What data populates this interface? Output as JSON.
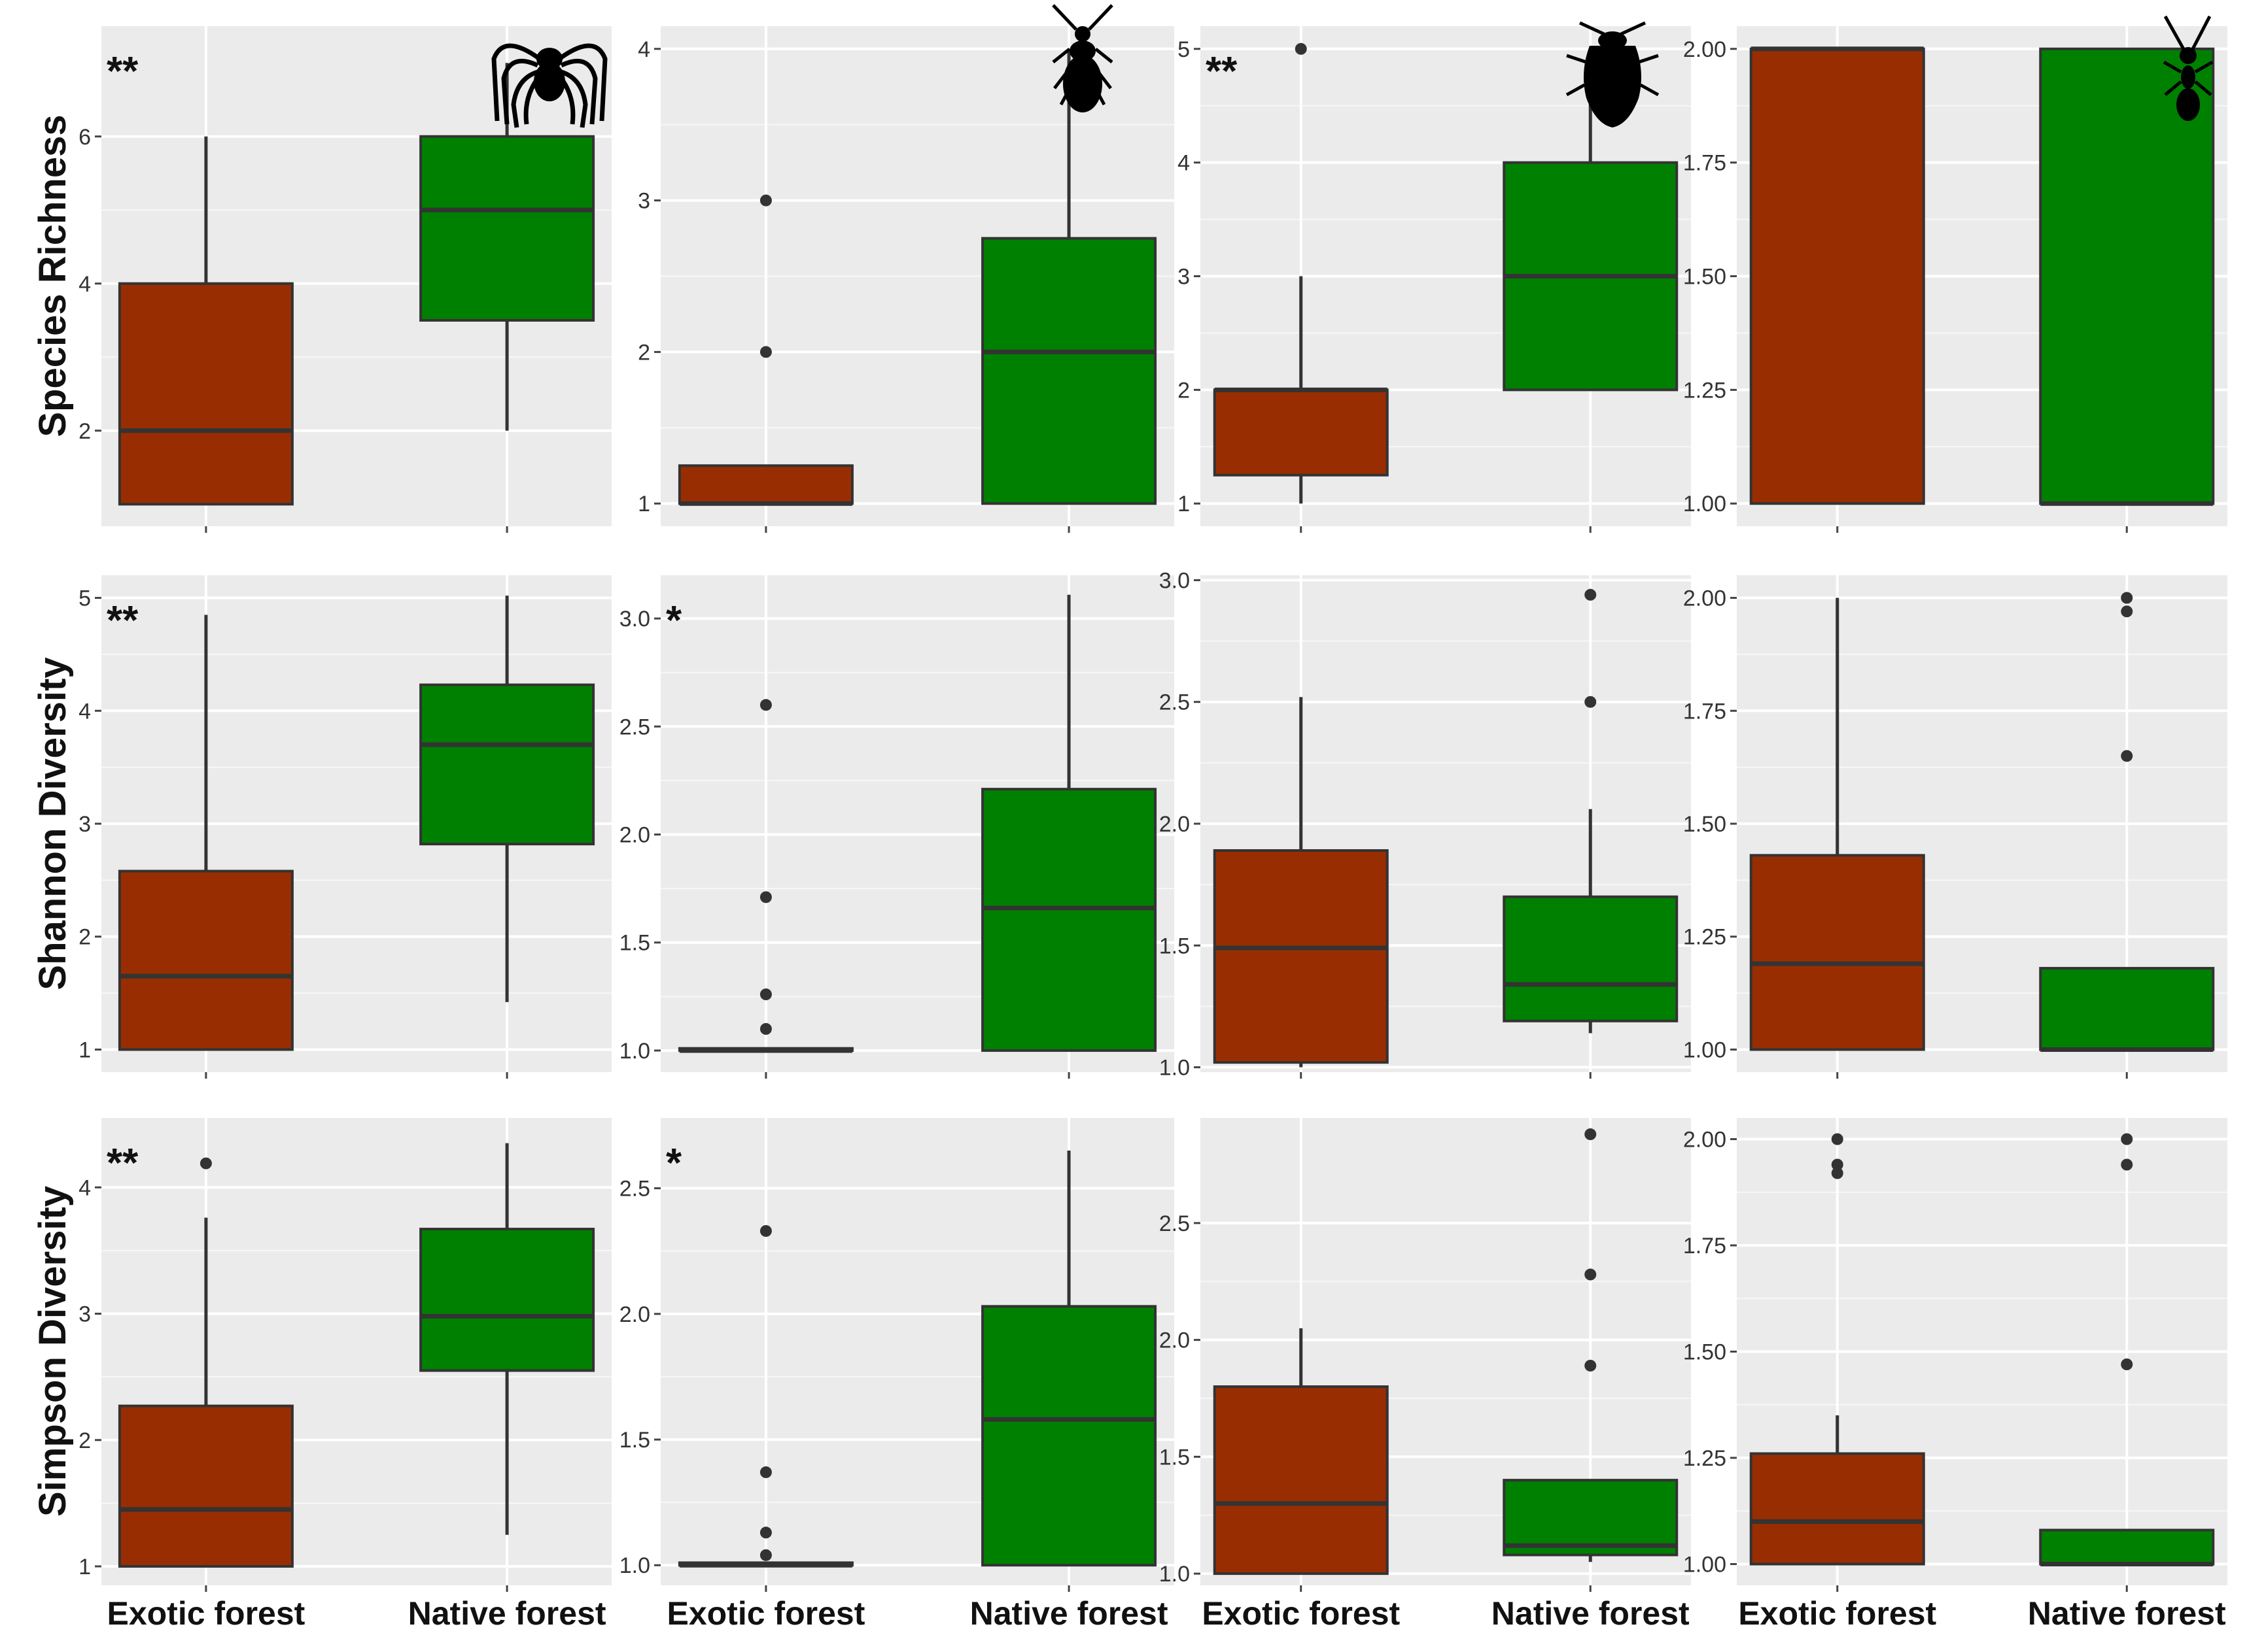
{
  "chart_data": {
    "type": "boxplot",
    "categories": [
      "Exotic forest",
      "Native forest"
    ],
    "colors": {
      "Exotic forest": "#992d02",
      "Native forest": "#008000"
    },
    "row_labels": [
      "Species Richness",
      "Shannon Diversity",
      "Simpson Diversity"
    ],
    "column_icons": [
      "spider-icon",
      "beetle-icon",
      "bug-icon",
      "ant-icon"
    ],
    "panels": [
      {
        "id": "r1c1",
        "metric": "Species Richness",
        "ylim": [
          0.7,
          7.5
        ],
        "yticks": [
          2,
          4,
          6
        ],
        "tick_labels": [
          "2",
          "4",
          "6"
        ],
        "significance": "**",
        "icon": "spider-icon",
        "boxes": [
          {
            "category": "Exotic forest",
            "min": 1,
            "q1": 1,
            "median": 2,
            "q3": 4,
            "max": 6,
            "outliers": []
          },
          {
            "category": "Native forest",
            "min": 2,
            "q1": 3.5,
            "median": 5,
            "q3": 6,
            "max": 7,
            "outliers": []
          }
        ]
      },
      {
        "id": "r1c2",
        "metric": "Species Richness",
        "ylim": [
          0.85,
          4.15
        ],
        "yticks": [
          1,
          2,
          3,
          4
        ],
        "tick_labels": [
          "1",
          "2",
          "3",
          "4"
        ],
        "significance": "",
        "icon": "beetle-icon",
        "boxes": [
          {
            "category": "Exotic forest",
            "min": 1,
            "q1": 1,
            "median": 1,
            "q3": 1.25,
            "max": 1.25,
            "outliers": [
              2,
              3
            ]
          },
          {
            "category": "Native forest",
            "min": 1,
            "q1": 1,
            "median": 2,
            "q3": 2.75,
            "max": 4,
            "outliers": []
          }
        ]
      },
      {
        "id": "r1c3",
        "metric": "Species Richness",
        "ylim": [
          0.8,
          5.2
        ],
        "yticks": [
          1,
          2,
          3,
          4,
          5
        ],
        "tick_labels": [
          "1",
          "2",
          "3",
          "4",
          "5"
        ],
        "significance": "**",
        "icon": "bug-icon",
        "boxes": [
          {
            "category": "Exotic forest",
            "min": 1,
            "q1": 1.25,
            "median": 2,
            "q3": 2,
            "max": 3,
            "outliers": [
              5
            ]
          },
          {
            "category": "Native forest",
            "min": 2,
            "q1": 2,
            "median": 3,
            "q3": 4,
            "max": 5,
            "outliers": []
          }
        ]
      },
      {
        "id": "r1c4",
        "metric": "Species Richness",
        "ylim": [
          0.95,
          2.05
        ],
        "yticks": [
          1.0,
          1.25,
          1.5,
          1.75,
          2.0
        ],
        "tick_labels": [
          "1.00",
          "1.25",
          "1.50",
          "1.75",
          "2.00"
        ],
        "significance": "",
        "icon": "ant-icon",
        "boxes": [
          {
            "category": "Exotic forest",
            "min": 1,
            "q1": 1,
            "median": 2,
            "q3": 2,
            "max": 2,
            "outliers": []
          },
          {
            "category": "Native forest",
            "min": 1,
            "q1": 1,
            "median": 1,
            "q3": 2,
            "max": 2,
            "outliers": []
          }
        ]
      },
      {
        "id": "r2c1",
        "metric": "Shannon Diversity",
        "ylim": [
          0.8,
          5.2
        ],
        "yticks": [
          1,
          2,
          3,
          4,
          5
        ],
        "tick_labels": [
          "1",
          "2",
          "3",
          "4",
          "5"
        ],
        "significance": "**",
        "icon": "",
        "boxes": [
          {
            "category": "Exotic forest",
            "min": 1,
            "q1": 1,
            "median": 1.65,
            "q3": 2.58,
            "max": 4.85,
            "outliers": []
          },
          {
            "category": "Native forest",
            "min": 1.42,
            "q1": 2.82,
            "median": 3.7,
            "q3": 4.23,
            "max": 5.02,
            "outliers": []
          }
        ]
      },
      {
        "id": "r2c2",
        "metric": "Shannon Diversity",
        "ylim": [
          0.9,
          3.2
        ],
        "yticks": [
          1.0,
          1.5,
          2.0,
          2.5,
          3.0
        ],
        "tick_labels": [
          "1.0",
          "1.5",
          "2.0",
          "2.5",
          "3.0"
        ],
        "significance": "*",
        "icon": "",
        "boxes": [
          {
            "category": "Exotic forest",
            "min": 1,
            "q1": 1,
            "median": 1,
            "q3": 1.01,
            "max": 1.01,
            "outliers": [
              1.1,
              1.26,
              1.71,
              2.6
            ]
          },
          {
            "category": "Native forest",
            "min": 1,
            "q1": 1,
            "median": 1.66,
            "q3": 2.21,
            "max": 3.11,
            "outliers": []
          }
        ]
      },
      {
        "id": "r2c3",
        "metric": "Shannon Diversity",
        "ylim": [
          0.98,
          3.02
        ],
        "yticks": [
          1.0,
          1.5,
          2.0,
          2.5,
          3.0
        ],
        "tick_labels": [
          "1.0",
          "1.5",
          "2.0",
          "2.5",
          "3.0"
        ],
        "significance": "",
        "icon": "",
        "boxes": [
          {
            "category": "Exotic forest",
            "min": 1,
            "q1": 1.02,
            "median": 1.49,
            "q3": 1.89,
            "max": 2.52,
            "outliers": []
          },
          {
            "category": "Native forest",
            "min": 1.14,
            "q1": 1.19,
            "median": 1.34,
            "q3": 1.7,
            "max": 2.06,
            "outliers": [
              2.5,
              2.94
            ]
          }
        ]
      },
      {
        "id": "r2c4",
        "metric": "Shannon Diversity",
        "ylim": [
          0.95,
          2.05
        ],
        "yticks": [
          1.0,
          1.25,
          1.5,
          1.75,
          2.0
        ],
        "tick_labels": [
          "1.00",
          "1.25",
          "1.50",
          "1.75",
          "2.00"
        ],
        "significance": "",
        "icon": "",
        "boxes": [
          {
            "category": "Exotic forest",
            "min": 1,
            "q1": 1,
            "median": 1.19,
            "q3": 1.43,
            "max": 2.0,
            "outliers": []
          },
          {
            "category": "Native forest",
            "min": 1,
            "q1": 1,
            "median": 1,
            "q3": 1.18,
            "max": 1.18,
            "outliers": [
              1.65,
              1.97,
              2.0
            ]
          }
        ]
      },
      {
        "id": "r3c1",
        "metric": "Simpson Diversity",
        "ylim": [
          0.85,
          4.55
        ],
        "yticks": [
          1,
          2,
          3,
          4
        ],
        "tick_labels": [
          "1",
          "2",
          "3",
          "4"
        ],
        "significance": "**",
        "icon": "",
        "boxes": [
          {
            "category": "Exotic forest",
            "min": 1,
            "q1": 1,
            "median": 1.45,
            "q3": 2.27,
            "max": 3.76,
            "outliers": [
              4.19
            ]
          },
          {
            "category": "Native forest",
            "min": 1.25,
            "q1": 2.55,
            "median": 2.98,
            "q3": 3.67,
            "max": 4.35,
            "outliers": []
          }
        ]
      },
      {
        "id": "r3c2",
        "metric": "Simpson Diversity",
        "ylim": [
          0.92,
          2.78
        ],
        "yticks": [
          1.0,
          1.5,
          2.0,
          2.5
        ],
        "tick_labels": [
          "1.0",
          "1.5",
          "2.0",
          "2.5"
        ],
        "significance": "*",
        "icon": "",
        "boxes": [
          {
            "category": "Exotic forest",
            "min": 1,
            "q1": 1,
            "median": 1,
            "q3": 1.01,
            "max": 1.01,
            "outliers": [
              1.04,
              1.13,
              1.37,
              2.33
            ]
          },
          {
            "category": "Native forest",
            "min": 1,
            "q1": 1,
            "median": 1.58,
            "q3": 2.03,
            "max": 2.65,
            "outliers": []
          }
        ]
      },
      {
        "id": "r3c3",
        "metric": "Simpson Diversity",
        "ylim": [
          0.95,
          2.95
        ],
        "yticks": [
          1.0,
          1.5,
          2.0,
          2.5
        ],
        "tick_labels": [
          "1.0",
          "1.5",
          "2.0",
          "2.5"
        ],
        "significance": "",
        "icon": "",
        "boxes": [
          {
            "category": "Exotic forest",
            "min": 1,
            "q1": 1,
            "median": 1.3,
            "q3": 1.8,
            "max": 2.05,
            "outliers": []
          },
          {
            "category": "Native forest",
            "min": 1.05,
            "q1": 1.08,
            "median": 1.12,
            "q3": 1.4,
            "max": 1.4,
            "outliers": [
              1.89,
              2.28,
              2.88
            ]
          }
        ]
      },
      {
        "id": "r3c4",
        "metric": "Simpson Diversity",
        "ylim": [
          0.95,
          2.05
        ],
        "yticks": [
          1.0,
          1.25,
          1.5,
          1.75,
          2.0
        ],
        "tick_labels": [
          "1.00",
          "1.25",
          "1.50",
          "1.75",
          "2.00"
        ],
        "significance": "",
        "icon": "",
        "boxes": [
          {
            "category": "Exotic forest",
            "min": 1,
            "q1": 1,
            "median": 1.1,
            "q3": 1.26,
            "max": 1.35,
            "outliers": [
              1.92,
              1.94,
              2.0
            ]
          },
          {
            "category": "Native forest",
            "min": 1,
            "q1": 1,
            "median": 1,
            "q3": 1.08,
            "max": 1.08,
            "outliers": [
              1.47,
              1.94,
              2.0
            ]
          }
        ]
      }
    ]
  }
}
